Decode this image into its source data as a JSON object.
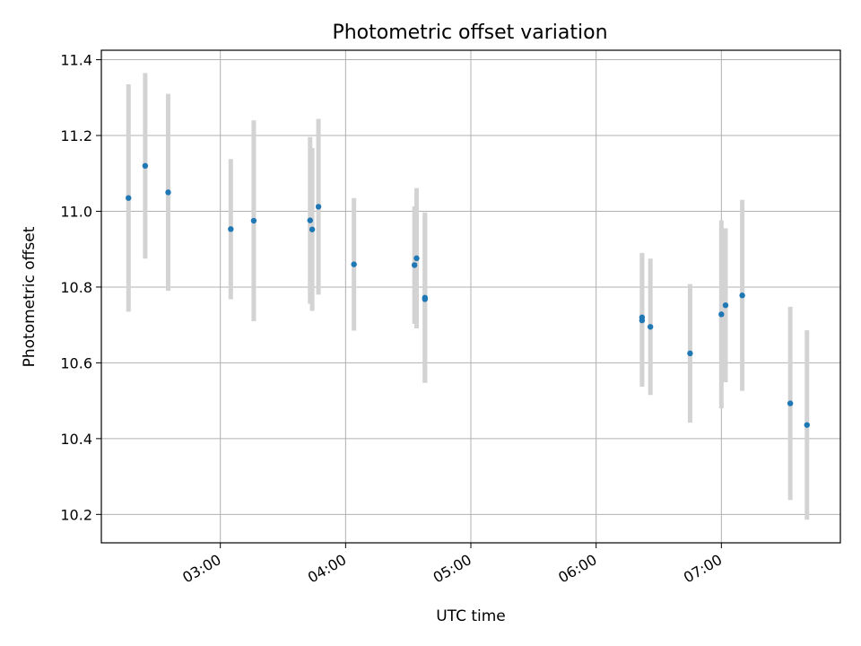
{
  "chart_data": {
    "type": "scatter",
    "title": "Photometric offset variation",
    "xlabel": "UTC time",
    "ylabel": "Photometric offset",
    "x_ticks": [
      "03:00",
      "04:00",
      "05:00",
      "06:00",
      "07:00"
    ],
    "y_ticks": [
      "10.2",
      "10.4",
      "10.6",
      "10.8",
      "11.0",
      "11.2",
      "11.4"
    ],
    "xlim": [
      "02:03",
      "07:57"
    ],
    "ylim": [
      10.125,
      11.425
    ],
    "grid": true,
    "colors": {
      "point": "#1f77b4",
      "error_bar": "#d3d3d3",
      "grid": "#b0b0b0"
    },
    "points": [
      {
        "x": "02:16",
        "y": 11.035,
        "err": 0.3
      },
      {
        "x": "02:24",
        "y": 11.12,
        "err": 0.245
      },
      {
        "x": "02:35",
        "y": 11.05,
        "err": 0.26
      },
      {
        "x": "03:05",
        "y": 10.953,
        "err": 0.185
      },
      {
        "x": "03:16",
        "y": 10.975,
        "err": 0.265
      },
      {
        "x": "03:43",
        "y": 10.976,
        "err": 0.22
      },
      {
        "x": "03:44",
        "y": 10.952,
        "err": 0.215
      },
      {
        "x": "03:47",
        "y": 11.012,
        "err": 0.232
      },
      {
        "x": "04:04",
        "y": 10.86,
        "err": 0.175
      },
      {
        "x": "04:33",
        "y": 10.858,
        "err": 0.155
      },
      {
        "x": "04:34",
        "y": 10.876,
        "err": 0.185
      },
      {
        "x": "04:38",
        "y": 10.772,
        "err": 0.225
      },
      {
        "x": "04:38",
        "y": 10.768,
        "err": 0.22
      },
      {
        "x": "06:22",
        "y": 10.712,
        "err": 0.175
      },
      {
        "x": "06:22",
        "y": 10.72,
        "err": 0.17
      },
      {
        "x": "06:26",
        "y": 10.695,
        "err": 0.18
      },
      {
        "x": "06:45",
        "y": 10.625,
        "err": 0.183
      },
      {
        "x": "07:00",
        "y": 10.728,
        "err": 0.248
      },
      {
        "x": "07:02",
        "y": 10.752,
        "err": 0.203
      },
      {
        "x": "07:10",
        "y": 10.778,
        "err": 0.252
      },
      {
        "x": "07:33",
        "y": 10.493,
        "err": 0.255
      },
      {
        "x": "07:41",
        "y": 10.436,
        "err": 0.25
      }
    ]
  }
}
